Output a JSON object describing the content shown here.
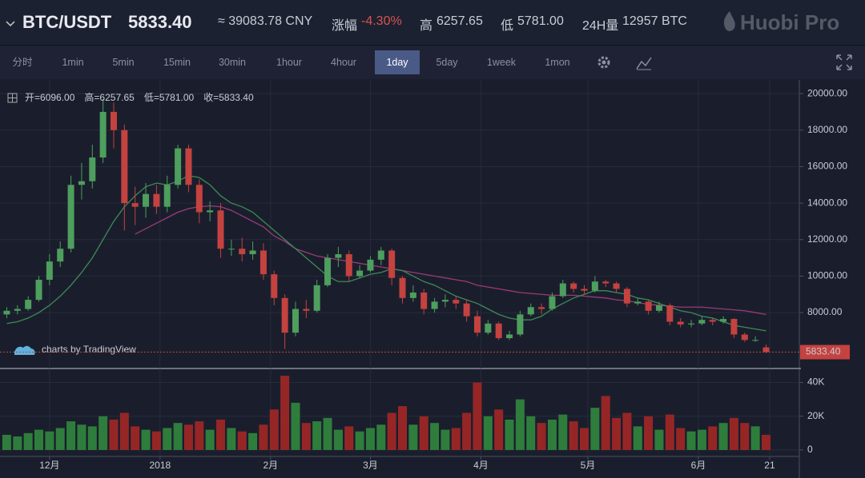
{
  "header": {
    "pair": "BTC/USDT",
    "price": "5833.40",
    "cny": "≈ 39083.78 CNY",
    "change_label": "涨幅",
    "change": "-4.30%",
    "high_label": "高",
    "high": "6257.65",
    "low_label": "低",
    "low": "5781.00",
    "vol_label": "24H量",
    "vol": "12957 BTC",
    "brand": "Huobi Pro"
  },
  "toolbar": [
    "分时",
    "1min",
    "5min",
    "15min",
    "30min",
    "1hour",
    "4hour",
    "1day",
    "5day",
    "1week",
    "1mon"
  ],
  "ohlc_legend": [
    {
      "label": "开=",
      "value": "6096.00"
    },
    {
      "label": "高=",
      "value": "6257.65"
    },
    {
      "label": "低=",
      "value": "5781.00"
    },
    {
      "label": "收=",
      "value": "5833.40"
    }
  ],
  "chart_data": {
    "type": "candlestick",
    "watermark": "charts by TradingView",
    "up_color": "#4e9e5e",
    "down_color": "#c4423f",
    "volume_up_color": "#2f7d3c",
    "volume_down_color": "#962626",
    "x": [
      1,
      4,
      7,
      10,
      13,
      16,
      19,
      22,
      25,
      28,
      31,
      34,
      37,
      40,
      43,
      46,
      49,
      52,
      55,
      58,
      61,
      64,
      67,
      70,
      73,
      76,
      79,
      82,
      85,
      88,
      91,
      94,
      97,
      100,
      103,
      106,
      109,
      112,
      115,
      118,
      121,
      124,
      127,
      130,
      133,
      136,
      139,
      142,
      145,
      148,
      151,
      154,
      157,
      160,
      163,
      166,
      169,
      172,
      175,
      178,
      181,
      184,
      187,
      190,
      193,
      196,
      199,
      202,
      205,
      208,
      211,
      214
    ],
    "open": [
      7900,
      8100,
      8200,
      8700,
      9800,
      10800,
      11500,
      15000,
      15200,
      16500,
      19000,
      18000,
      14000,
      13800,
      14500,
      13800,
      15000,
      17000,
      15000,
      13500,
      13600,
      11500,
      11500,
      11200,
      11400,
      10100,
      8800,
      6900,
      8200,
      8100,
      9500,
      11000,
      11200,
      10000,
      10300,
      10900,
      11400,
      9900,
      8800,
      9100,
      8200,
      8600,
      8700,
      8500,
      7800,
      6900,
      7400,
      6600,
      6800,
      7900,
      8300,
      8200,
      8900,
      9600,
      9300,
      9200,
      9700,
      9600,
      9300,
      8500,
      8600,
      8100,
      8400,
      7500,
      7350,
      7400,
      7600,
      7500,
      7650,
      6800,
      6500,
      6096
    ],
    "high": [
      8300,
      8400,
      8900,
      10000,
      11200,
      11900,
      15500,
      16200,
      17200,
      19700,
      19500,
      18300,
      14900,
      15100,
      15000,
      15500,
      17200,
      17200,
      15300,
      14100,
      14000,
      12000,
      12100,
      11900,
      11800,
      10300,
      9000,
      8600,
      8700,
      9800,
      11200,
      11600,
      11400,
      10600,
      11100,
      11600,
      11500,
      10000,
      9500,
      9300,
      8800,
      9000,
      8900,
      8700,
      8100,
      7600,
      7500,
      7000,
      8100,
      8500,
      8500,
      9100,
      9800,
      9700,
      9500,
      10000,
      9800,
      9700,
      9400,
      8800,
      8700,
      8600,
      8500,
      7700,
      7600,
      7800,
      7700,
      7800,
      7700,
      6900,
      6700,
      6257.65
    ],
    "low": [
      7700,
      7900,
      8100,
      8600,
      9500,
      10500,
      11300,
      14200,
      14800,
      16200,
      17000,
      12500,
      12800,
      13200,
      13400,
      13500,
      14800,
      14600,
      12900,
      13000,
      11000,
      11100,
      10800,
      10900,
      9800,
      8400,
      6000,
      6700,
      7700,
      8000,
      9400,
      10500,
      9700,
      9900,
      10200,
      10600,
      9500,
      8500,
      8600,
      7900,
      8000,
      8300,
      8200,
      7500,
      6700,
      6800,
      6500,
      6500,
      6700,
      7800,
      7900,
      8100,
      8800,
      9100,
      9000,
      9100,
      9400,
      9100,
      8300,
      8400,
      7900,
      8000,
      7300,
      7200,
      7200,
      7300,
      7300,
      7400,
      6600,
      6400,
      6400,
      5781
    ],
    "close": [
      8100,
      8200,
      8700,
      9800,
      10800,
      11500,
      15000,
      15200,
      16500,
      19000,
      18000,
      14000,
      13800,
      14500,
      13800,
      15000,
      17000,
      15000,
      13500,
      13600,
      11500,
      11500,
      11200,
      11400,
      10100,
      8800,
      6900,
      8200,
      8100,
      9500,
      11000,
      11200,
      10000,
      10300,
      10900,
      11400,
      9900,
      8800,
      9100,
      8200,
      8600,
      8700,
      8500,
      7800,
      6900,
      7400,
      6600,
      6800,
      7900,
      8300,
      8200,
      8900,
      9600,
      9300,
      9200,
      9700,
      9600,
      9300,
      8500,
      8600,
      8100,
      8400,
      7500,
      7350,
      7400,
      7600,
      7500,
      7650,
      6800,
      6500,
      6500,
      5833.4
    ],
    "volume": [
      9000,
      8000,
      10000,
      12000,
      11000,
      13000,
      17000,
      15000,
      14000,
      20000,
      18000,
      22000,
      14000,
      12000,
      11000,
      13000,
      16000,
      15000,
      17000,
      12000,
      18000,
      13000,
      11000,
      10000,
      15000,
      24000,
      44000,
      28000,
      16000,
      17000,
      19000,
      12000,
      14000,
      11000,
      13000,
      15000,
      22000,
      26000,
      15000,
      20000,
      16000,
      12000,
      13000,
      22000,
      40000,
      20000,
      24000,
      18000,
      30000,
      20000,
      16000,
      18000,
      21000,
      17000,
      13000,
      25000,
      32000,
      19000,
      22000,
      14000,
      20000,
      12000,
      21000,
      13000,
      11000,
      12000,
      14000,
      16000,
      19000,
      16000,
      14000,
      9000
    ],
    "ma": [
      {
        "color": "#9b3a78",
        "values": [
          null,
          null,
          null,
          null,
          null,
          null,
          null,
          null,
          null,
          null,
          null,
          null,
          12300,
          12600,
          12900,
          13200,
          13500,
          13700,
          13800,
          13850,
          13800,
          13600,
          13300,
          13000,
          12700,
          12200,
          11900,
          11500,
          11300,
          11100,
          11000,
          10900,
          10800,
          10700,
          10600,
          10500,
          10400,
          10300,
          10200,
          10100,
          10000,
          9900,
          9800,
          9700,
          9500,
          9400,
          9300,
          9200,
          9100,
          9050,
          9000,
          8950,
          8950,
          8950,
          8900,
          8850,
          8800,
          8700,
          8650,
          8550,
          8450,
          8400,
          8350,
          8300,
          8300,
          8300,
          8250,
          8200,
          8150,
          8100,
          8000,
          7900
        ]
      },
      {
        "color": "#3e8a57",
        "values": [
          7400,
          7500,
          7700,
          8000,
          8400,
          8900,
          9500,
          10200,
          11000,
          12000,
          13000,
          13800,
          14400,
          14900,
          15100,
          15000,
          15200,
          15500,
          15400,
          15000,
          14400,
          14000,
          13800,
          13500,
          13000,
          12500,
          12000,
          11500,
          11000,
          10500,
          10000,
          9700,
          9700,
          9900,
          10100,
          10200,
          10400,
          10300,
          10000,
          9700,
          9500,
          9200,
          8900,
          8700,
          8500,
          8200,
          7900,
          7700,
          7600,
          7600,
          7800,
          8200,
          8500,
          8800,
          9000,
          9200,
          9200,
          9100,
          9000,
          8800,
          8700,
          8500,
          8300,
          8100,
          8000,
          7800,
          7700,
          7500,
          7300,
          7200,
          7100,
          7000
        ]
      }
    ],
    "xlim": [
      -0.9,
      223.1
    ],
    "xticks": [
      {
        "value": 13,
        "label": "12月"
      },
      {
        "value": 44,
        "label": "2018"
      },
      {
        "value": 75,
        "label": "2月"
      },
      {
        "value": 103,
        "label": "3月"
      },
      {
        "value": 134,
        "label": "4月"
      },
      {
        "value": 164,
        "label": "5月"
      },
      {
        "value": 195,
        "label": "6月"
      },
      {
        "value": 215,
        "label": "21"
      }
    ],
    "ylim": [
      5200,
      20750
    ],
    "yticks": [
      {
        "value": 8000,
        "label": "8000.00"
      },
      {
        "value": 10000,
        "label": "10000.00"
      },
      {
        "value": 12000,
        "label": "12000.00"
      },
      {
        "value": 14000,
        "label": "14000.00"
      },
      {
        "value": 16000,
        "label": "16000.00"
      },
      {
        "value": 18000,
        "label": "18000.00"
      },
      {
        "value": 20000,
        "label": "20000.00"
      }
    ],
    "volume_ylim": [
      -2400,
      45000
    ],
    "volume_ticks": [
      0,
      {
        "value": 20000,
        "label": "20K"
      },
      {
        "value": 40000,
        "label": "40K"
      }
    ],
    "last_price": {
      "value": 5833.4,
      "label": "5833.40"
    },
    "grid": true
  }
}
